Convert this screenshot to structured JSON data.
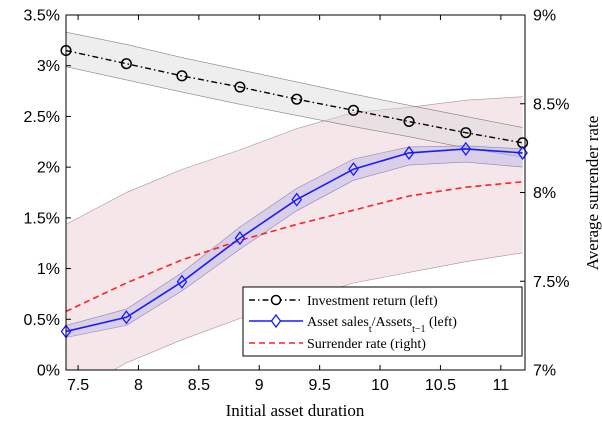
{
  "chart_data": {
    "type": "line",
    "xlabel": "Initial asset duration",
    "ylabel_left": "",
    "ylabel_right": "Average surrender rate",
    "xlim": [
      7.4,
      11.2
    ],
    "ylim_left": [
      0,
      3.5
    ],
    "ylim_right": [
      7,
      9
    ],
    "x_ticks": [
      "7.5",
      "8",
      "8.5",
      "9",
      "9.5",
      "10",
      "10.5",
      "11"
    ],
    "x_tick_values": [
      7.5,
      8,
      8.5,
      9,
      9.5,
      10,
      10.5,
      11
    ],
    "y_left_ticks": [
      "0%",
      "0.5%",
      "1%",
      "1.5%",
      "2%",
      "2.5%",
      "3%",
      "3.5%"
    ],
    "y_left_tick_values": [
      0,
      0.5,
      1,
      1.5,
      2,
      2.5,
      3,
      3.5
    ],
    "y_right_ticks": [
      "7%",
      "7.5%",
      "8%",
      "8.5%",
      "9%"
    ],
    "y_right_tick_values": [
      7,
      7.5,
      8,
      8.5,
      9
    ],
    "grid": false,
    "legend_position": "bottom-right",
    "series": [
      {
        "name": "Investment return (left)",
        "axis": "left",
        "style": "dash-dot",
        "marker": "circle",
        "color": "#000000",
        "x": [
          7.4,
          7.9,
          8.36,
          8.84,
          9.31,
          9.78,
          10.24,
          10.71,
          11.18
        ],
        "values": [
          3.15,
          3.02,
          2.9,
          2.79,
          2.67,
          2.56,
          2.45,
          2.34,
          2.24
        ],
        "band_upper": [
          3.33,
          3.21,
          3.08,
          2.96,
          2.84,
          2.72,
          2.61,
          2.5,
          2.39
        ],
        "band_lower": [
          2.99,
          2.86,
          2.74,
          2.62,
          2.51,
          2.4,
          2.3,
          2.19,
          2.1
        ]
      },
      {
        "name": "Asset sales_t/Assets_t-1 (left)",
        "axis": "left",
        "style": "solid",
        "marker": "diamond",
        "color": "#1a1aff",
        "x": [
          7.4,
          7.9,
          8.36,
          8.84,
          9.31,
          9.78,
          10.24,
          10.71,
          11.18
        ],
        "values": [
          0.38,
          0.52,
          0.87,
          1.3,
          1.68,
          1.98,
          2.14,
          2.18,
          2.14
        ],
        "band_upper": [
          0.44,
          0.6,
          0.96,
          1.41,
          1.79,
          2.08,
          2.2,
          2.21,
          2.18
        ],
        "band_lower": [
          0.32,
          0.44,
          0.78,
          1.19,
          1.57,
          1.87,
          2.02,
          2.05,
          2.0
        ]
      },
      {
        "name": "Surrender rate (right)",
        "axis": "right",
        "style": "dashed",
        "marker": "none",
        "color": "#ff2222",
        "x": [
          7.4,
          7.9,
          8.36,
          8.84,
          9.31,
          9.78,
          10.24,
          10.71,
          11.18
        ],
        "values": [
          7.33,
          7.49,
          7.62,
          7.73,
          7.82,
          7.9,
          7.98,
          8.03,
          8.06
        ],
        "band_upper": [
          7.82,
          8.0,
          8.13,
          8.24,
          8.36,
          8.45,
          8.48,
          8.52,
          8.54
        ],
        "band_lower": [
          6.85,
          7.04,
          7.17,
          7.29,
          7.39,
          7.49,
          7.55,
          7.61,
          7.66
        ]
      }
    ],
    "legend": [
      {
        "label": "Investment return (left)",
        "sub": ""
      },
      {
        "label": "Asset sales",
        "sub": "t",
        "label2": "/Assets",
        "sub2": "t−1",
        "label3": " (left)"
      },
      {
        "label": "Surrender rate (right)",
        "sub": ""
      }
    ]
  }
}
